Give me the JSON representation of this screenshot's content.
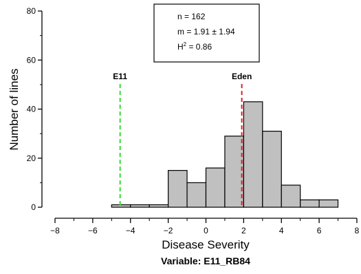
{
  "chart_data": {
    "type": "histogram",
    "xlabel": "Disease Severity",
    "ylabel": "Number of lines",
    "variable_label": "Variable: E11_RB84",
    "xlim": [
      -8,
      8
    ],
    "ylim": [
      0,
      80
    ],
    "x_ticks": [
      -8,
      -6,
      -4,
      -2,
      0,
      2,
      4,
      6,
      8
    ],
    "y_ticks": [
      0,
      20,
      40,
      60,
      80
    ],
    "bin_edges": [
      -5,
      -4,
      -3,
      -2,
      -1,
      0,
      1,
      2,
      3,
      4,
      5,
      6,
      7
    ],
    "counts": [
      1,
      1,
      1,
      15,
      10,
      16,
      29,
      43,
      31,
      9,
      3,
      3
    ],
    "bar_color": "#c0c0c0",
    "reference_lines": [
      {
        "label": "E11",
        "x": -4.55,
        "color": "#33dd33"
      },
      {
        "label": "Eden",
        "x": 1.9,
        "color": "#dd2222"
      }
    ],
    "stats": {
      "n": "n = 162",
      "m": "m = 1.91 ± 1.94",
      "h2_prefix": "H",
      "h2_sup": "2",
      "h2_value": " = 0.86"
    },
    "grid": false
  }
}
